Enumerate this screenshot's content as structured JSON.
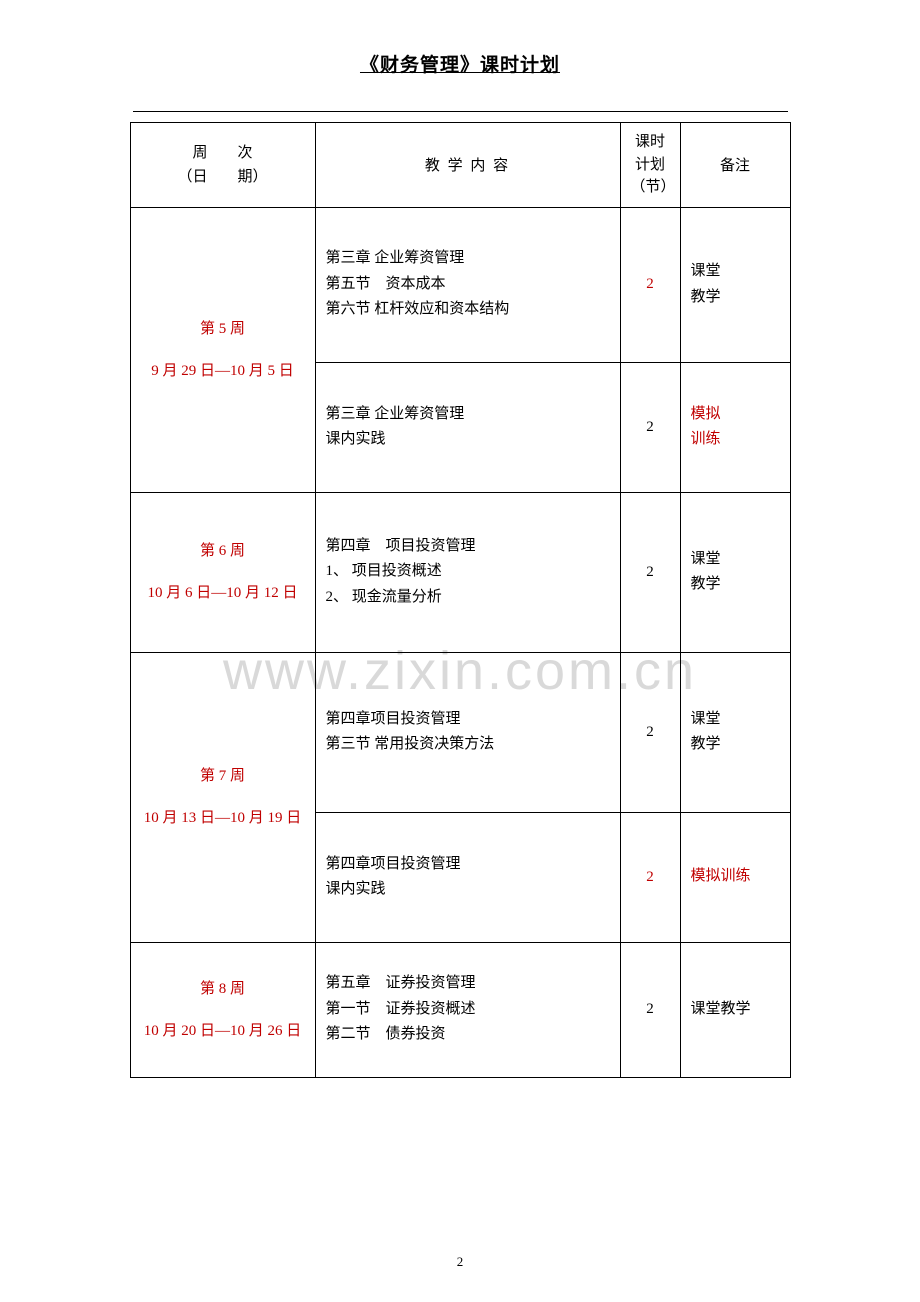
{
  "title": "《财务管理》课时计划",
  "watermark": "www.zixin.com.cn",
  "page_number": "2",
  "headers": {
    "week_line1": "周　　次",
    "week_line2": "（日　　期）",
    "content": "教 学 内 容",
    "hours_line1": "课时",
    "hours_line2": "计划",
    "hours_line3": "（节）",
    "notes": "备注"
  },
  "rows": [
    {
      "week_label": "第 5 周",
      "week_dates": "9 月 29 日—10 月 5 日",
      "rowspan": 2,
      "content_lines": [
        "第三章  企业筹资管理",
        "第五节　资本成本",
        "第六节  杠杆效应和资本结构"
      ],
      "hours": "2",
      "hours_color": "#c00000",
      "notes_lines": [
        "课堂",
        "教学"
      ],
      "notes_color": "#000000",
      "row_class": "row-h1"
    },
    {
      "content_lines": [
        "第三章  企业筹资管理",
        "课内实践"
      ],
      "hours": "2",
      "hours_color": "#000000",
      "notes_lines": [
        "模拟",
        "训练"
      ],
      "notes_color": "#c00000",
      "row_class": "row-h2"
    },
    {
      "week_label": "第 6 周",
      "week_dates": "10 月 6 日—10 月 12 日",
      "rowspan": 1,
      "content_lines": [
        "第四章　项目投资管理",
        "1、 项目投资概述",
        "2、 现金流量分析"
      ],
      "hours": "2",
      "hours_color": "#000000",
      "notes_lines": [
        "课堂",
        "教学"
      ],
      "notes_color": "#000000",
      "row_class": "row-h3"
    },
    {
      "week_label": "第 7 周",
      "week_dates": "10 月 13 日—10 月 19 日",
      "rowspan": 2,
      "content_lines": [
        "第四章项目投资管理",
        "第三节 常用投资决策方法"
      ],
      "hours": "2",
      "hours_color": "#000000",
      "notes_lines": [
        "课堂",
        "教学"
      ],
      "notes_color": "#000000",
      "row_class": "row-h4"
    },
    {
      "content_lines": [
        "第四章项目投资管理",
        "课内实践"
      ],
      "hours": "2",
      "hours_color": "#c00000",
      "notes_lines": [
        "模拟训练"
      ],
      "notes_color": "#c00000",
      "row_class": "row-h5"
    },
    {
      "week_label": "第 8 周",
      "week_dates": "10 月 20 日—10 月 26 日",
      "rowspan": 1,
      "content_lines": [
        "第五章　证券投资管理",
        "第一节　证券投资概述",
        "第二节　债券投资"
      ],
      "hours": "2",
      "hours_color": "#000000",
      "notes_lines": [
        "课堂教学"
      ],
      "notes_color": "#000000",
      "row_class": "row-h6"
    }
  ]
}
